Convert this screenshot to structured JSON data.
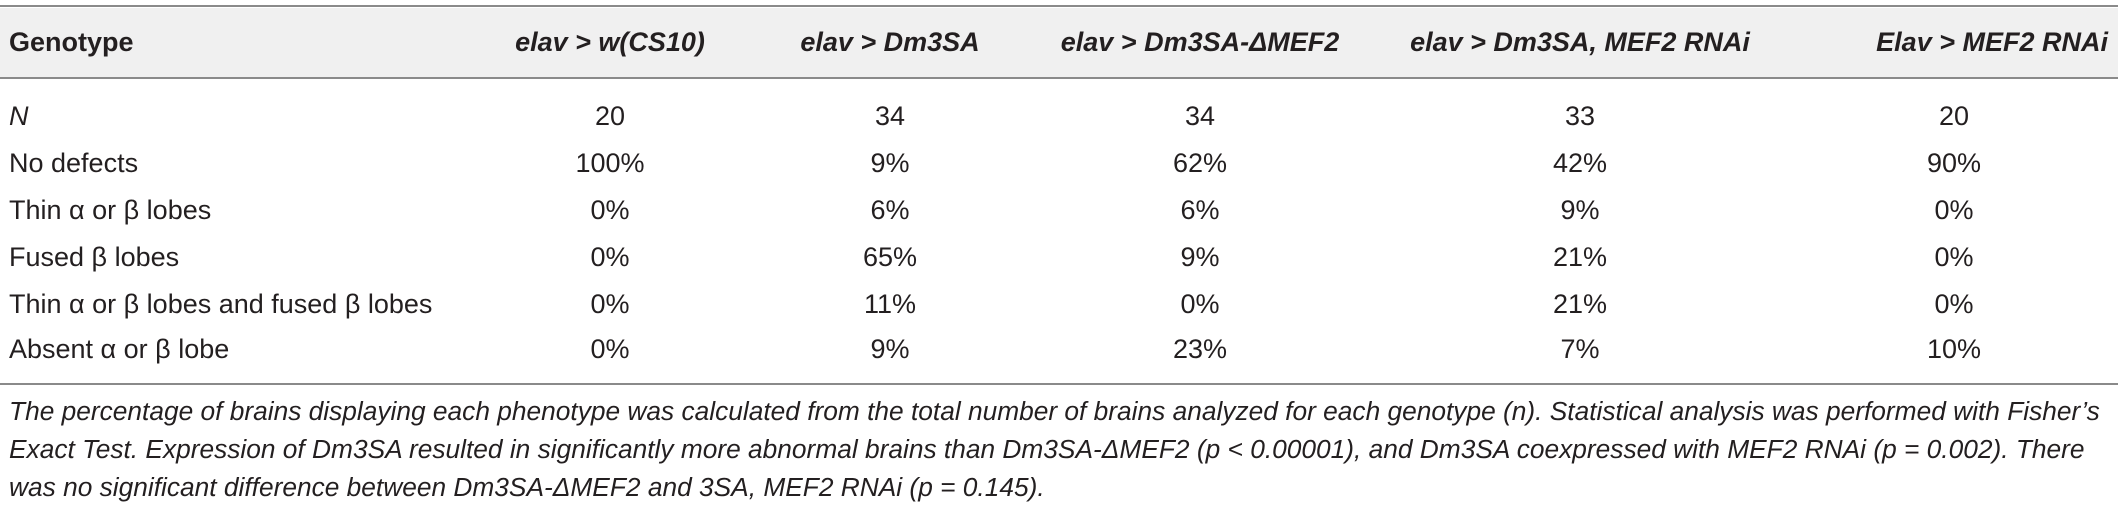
{
  "table": {
    "headers": [
      "Genotype",
      "elav > w(CS10)",
      "elav > Dm3SA",
      "elav > Dm3SA-ΔMEF2",
      "elav > Dm3SA, MEF2 RNAi",
      "Elav > MEF2 RNAi"
    ],
    "rows": [
      {
        "label": "N",
        "values": [
          "20",
          "34",
          "34",
          "33",
          "20"
        ]
      },
      {
        "label": "No defects",
        "values": [
          "100%",
          "9%",
          "62%",
          "42%",
          "90%"
        ]
      },
      {
        "label": "Thin α or β lobes",
        "values": [
          "0%",
          "6%",
          "6%",
          "9%",
          "0%"
        ]
      },
      {
        "label": "Fused β lobes",
        "values": [
          "0%",
          "65%",
          "9%",
          "21%",
          "0%"
        ]
      },
      {
        "label": "Thin α or β lobes and fused β lobes",
        "values": [
          "0%",
          "11%",
          "0%",
          "21%",
          "0%"
        ]
      },
      {
        "label": "Absent α or β lobe",
        "values": [
          "0%",
          "9%",
          "23%",
          "7%",
          "10%"
        ]
      }
    ]
  },
  "footnote": "The percentage of brains displaying each phenotype was calculated from the total number of brains analyzed for each genotype (n). Statistical analysis was performed with Fisher’s Exact Test. Expression of Dm3SA resulted in significantly more abnormal brains than Dm3SA-ΔMEF2 (p < 0.00001), and Dm3SA coexpressed with MEF2 RNAi (p = 0.002). There was no significant difference between Dm3SA-ΔMEF2 and 3SA, MEF2 RNAi (p = 0.145)."
}
